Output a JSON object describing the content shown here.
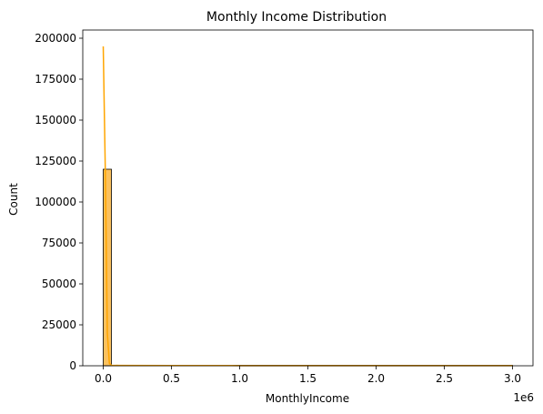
{
  "chart_data": {
    "type": "bar",
    "title": "Monthly Income Distribution",
    "xlabel": "MonthlyIncome",
    "ylabel": "Count",
    "x_offset_label": "1e6",
    "xlim": [
      -150000,
      3150000
    ],
    "ylim": [
      0,
      205000
    ],
    "x_ticks": [
      0,
      500000,
      1000000,
      1500000,
      2000000,
      2500000,
      3000000
    ],
    "x_tick_labels": [
      "0.0",
      "0.5",
      "1.0",
      "1.5",
      "2.0",
      "2.5",
      "3.0"
    ],
    "y_ticks": [
      0,
      25000,
      50000,
      75000,
      100000,
      125000,
      150000,
      175000,
      200000
    ],
    "y_tick_labels": [
      "0",
      "25000",
      "50000",
      "75000",
      "100000",
      "125000",
      "150000",
      "175000",
      "200000"
    ],
    "grid": false,
    "series": [
      {
        "kind": "histogram",
        "bins": [
          [
            0,
            60000,
            120000
          ],
          [
            60000,
            3000000,
            300
          ]
        ]
      },
      {
        "kind": "kde-line",
        "x": [
          0,
          15000,
          30000,
          45000,
          60000,
          120000,
          500000,
          1000000,
          1500000,
          2000000,
          2500000,
          3000000
        ],
        "y": [
          195000,
          120000,
          20000,
          1500,
          300,
          200,
          150,
          100,
          80,
          60,
          50,
          40
        ]
      }
    ],
    "colors": {
      "bar_fill": "#fbc15e",
      "bar_edge": "#000000",
      "line": "#ffa500",
      "axes": "#000000"
    }
  }
}
